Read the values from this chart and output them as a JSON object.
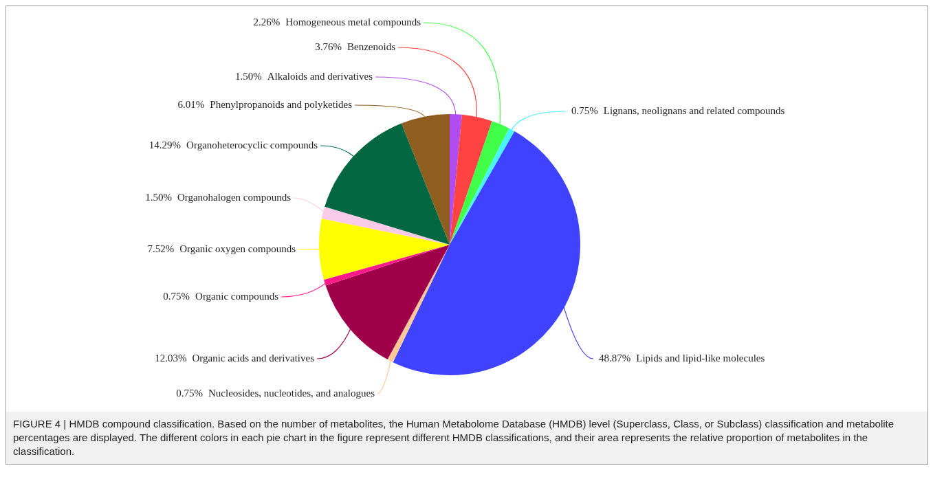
{
  "chart_data": {
    "type": "pie",
    "categories": [
      "Alkaloids and derivatives",
      "Benzenoids",
      "Homogeneous metal compounds",
      "Lignans, neolignans and related compounds",
      "Lipids and lipid-like molecules",
      "Nucleosides, nucleotides, and analogues",
      "Organic acids and derivatives",
      "Organic compounds",
      "Organic oxygen compounds",
      "Organohalogen compounds",
      "Organoheterocyclic compounds",
      "Phenylpropanoids and polyketides"
    ],
    "values": [
      1.5,
      3.76,
      2.26,
      0.75,
      48.87,
      0.75,
      12.03,
      0.75,
      7.52,
      1.5,
      14.29,
      6.01
    ],
    "colors": [
      "#b14cf0",
      "#ff4242",
      "#42ff4a",
      "#48f2ff",
      "#3f43ff",
      "#ffc89a",
      "#a0004a",
      "#ff1a8c",
      "#ffff00",
      "#f8cce8",
      "#036842",
      "#8f5e1e"
    ],
    "value_labels": [
      "1.50%",
      "3.76%",
      "2.26%",
      "0.75%",
      "48.87%",
      "0.75%",
      "12.03%",
      "0.75%",
      "7.52%",
      "1.50%",
      "14.29%",
      "6.01%"
    ],
    "legend": false,
    "annotations": [
      "FIGURE 4 | HMDB compound classification. Based on the number of metabolites, the Human Metabolome Database (HMDB) level (Superclass, Class, or Subclass) classification and metabolite percentages are displayed. The different colors in each pie chart in the figure represent different HMDB classifications, and their area represents the relative proportion of metabolites in the classification."
    ]
  }
}
